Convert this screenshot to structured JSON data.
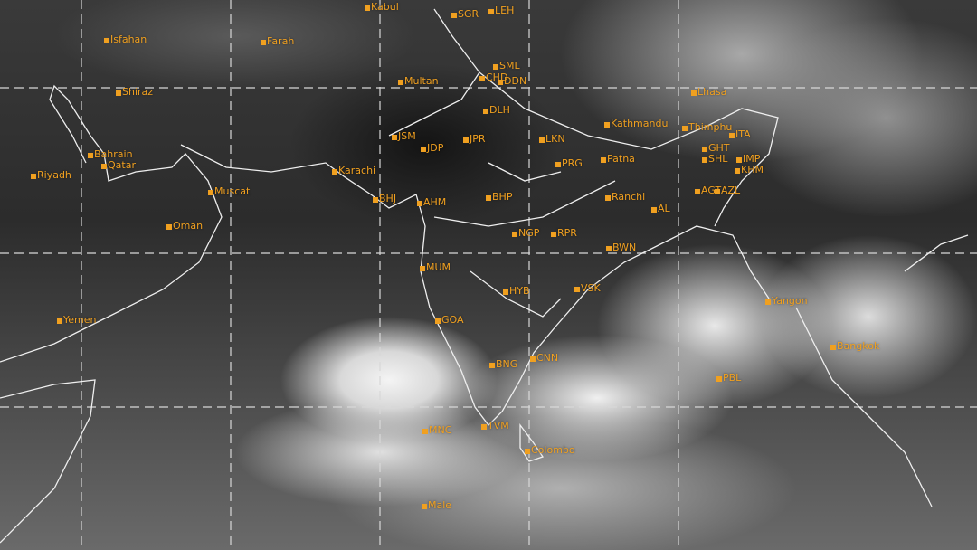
{
  "map": {
    "accent_color": "#f0a020",
    "grid": "dashed",
    "labels": [
      "Kabul",
      "Isfahan",
      "Farah",
      "Shiraz",
      "Multan",
      "SGR",
      "LEH",
      "SML",
      "CHD",
      "DDN",
      "DLH",
      "JSM",
      "JDP",
      "JPR",
      "LKN",
      "PRG",
      "Bahrain",
      "Qatar",
      "Riyadh",
      "Karachi",
      "Muscat",
      "Oman",
      "Yemen",
      "BHJ",
      "AHM",
      "BHP",
      "NGP",
      "RPR",
      "Ranchi",
      "BWN",
      "MUM",
      "HYB",
      "VSK",
      "GOA",
      "BNG",
      "CNN",
      "MNC",
      "TVM",
      "Colombo",
      "Male",
      "Kathmandu",
      "Thimphu",
      "Lhasa",
      "Patna",
      "ITA",
      "GHT",
      "SHL",
      "IMP",
      "KHM",
      "AGT",
      "AZL",
      "AL",
      "Yangon",
      "Bangkok",
      "PBL"
    ]
  }
}
